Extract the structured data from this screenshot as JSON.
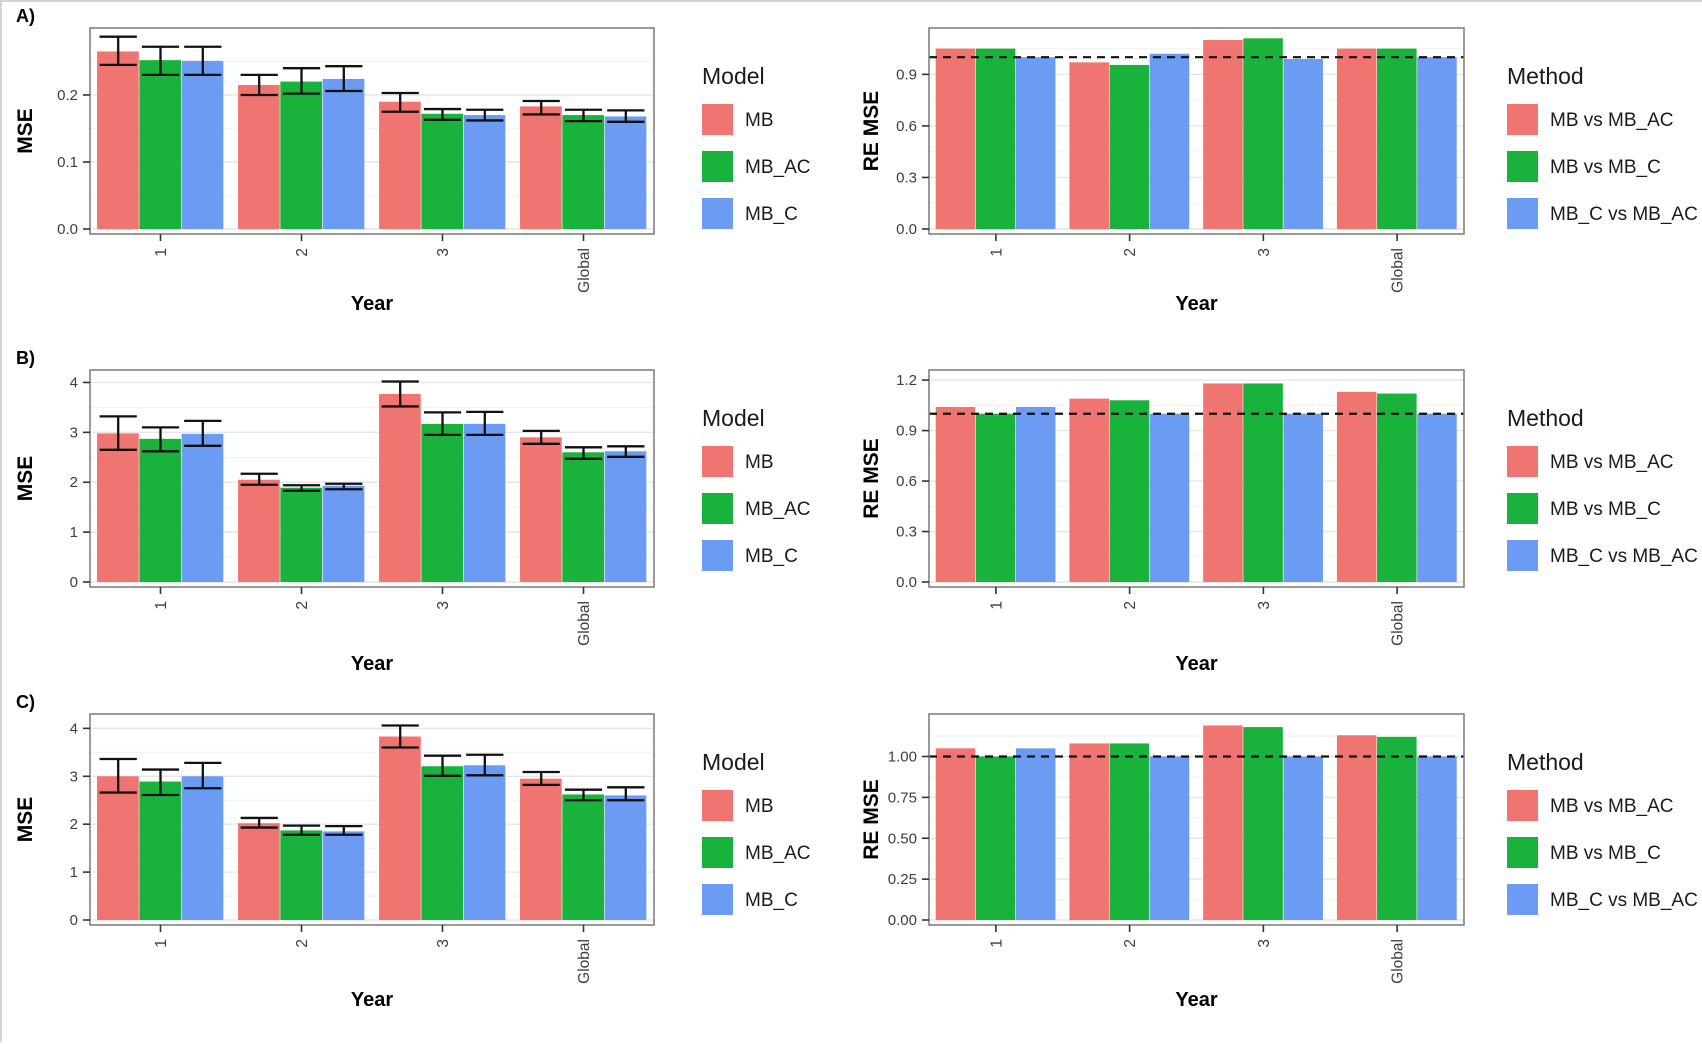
{
  "palette": {
    "red": "#F07470",
    "green": "#18B23C",
    "blue": "#6B9BF2",
    "error_bar": "#111111",
    "dashed_line": "#111111",
    "tick_text": "#3d3d3d",
    "axis_text": "#000000",
    "frame": "#808080",
    "grid_major": "#e6e6e6",
    "grid_minor": "#f2f2f2"
  },
  "chart_data": [
    {
      "type": "bar",
      "panel_label": "A)",
      "row": 0,
      "side": "left",
      "ylabel": "MSE",
      "xlabel": "Year",
      "categories": [
        "1",
        "2",
        "3",
        "Global"
      ],
      "yticks": [
        0,
        0.1,
        0.2
      ],
      "ytick_labels": [
        "0.0",
        "0.1",
        "0.2"
      ],
      "ylim": [
        0,
        0.3
      ],
      "grid": true,
      "hline": null,
      "legend": {
        "title": "Model",
        "position": "right",
        "items": [
          {
            "label": "MB",
            "color": "red"
          },
          {
            "label": "MB_AC",
            "color": "green"
          },
          {
            "label": "MB_C",
            "color": "blue"
          }
        ]
      },
      "series": [
        {
          "name": "MB",
          "color": "red",
          "values": [
            0.265,
            0.215,
            0.19,
            0.183
          ],
          "err_low": [
            0.245,
            0.2,
            0.175,
            0.171
          ],
          "err_high": [
            0.287,
            0.23,
            0.203,
            0.191
          ]
        },
        {
          "name": "MB_AC",
          "color": "green",
          "values": [
            0.252,
            0.22,
            0.172,
            0.17
          ],
          "err_low": [
            0.23,
            0.202,
            0.163,
            0.161
          ],
          "err_high": [
            0.272,
            0.24,
            0.179,
            0.178
          ]
        },
        {
          "name": "MB_C",
          "color": "blue",
          "values": [
            0.251,
            0.224,
            0.17,
            0.168
          ],
          "err_low": [
            0.23,
            0.206,
            0.162,
            0.16
          ],
          "err_high": [
            0.272,
            0.243,
            0.178,
            0.177
          ]
        }
      ]
    },
    {
      "type": "bar",
      "panel_label": null,
      "row": 0,
      "side": "right",
      "ylabel": "RE MSE",
      "xlabel": "Year",
      "categories": [
        "1",
        "2",
        "3",
        "Global"
      ],
      "yticks": [
        0,
        0.3,
        0.6,
        0.9
      ],
      "ytick_labels": [
        "0.0",
        "0.3",
        "0.6",
        "0.9"
      ],
      "ylim": [
        0,
        1.17
      ],
      "grid": true,
      "hline": 1.0,
      "legend": {
        "title": "Method",
        "position": "right",
        "items": [
          {
            "label": "MB vs MB_AC",
            "color": "red"
          },
          {
            "label": "MB vs MB_C",
            "color": "green"
          },
          {
            "label": "MB_C vs MB_AC",
            "color": "blue"
          }
        ]
      },
      "series": [
        {
          "name": "MB vs MB_AC",
          "color": "red",
          "values": [
            1.05,
            0.97,
            1.1,
            1.05
          ]
        },
        {
          "name": "MB vs MB_C",
          "color": "green",
          "values": [
            1.05,
            0.955,
            1.11,
            1.05
          ]
        },
        {
          "name": "MB_C vs MB_AC",
          "color": "blue",
          "values": [
            1.0,
            1.02,
            0.99,
            1.0
          ]
        }
      ]
    },
    {
      "type": "bar",
      "panel_label": "B)",
      "row": 1,
      "side": "left",
      "ylabel": "MSE",
      "xlabel": "Year",
      "categories": [
        "1",
        "2",
        "3",
        "Global"
      ],
      "yticks": [
        0,
        1,
        2,
        3,
        4
      ],
      "ytick_labels": [
        "0",
        "1",
        "2",
        "3",
        "4"
      ],
      "ylim": [
        0,
        4.25
      ],
      "grid": true,
      "hline": null,
      "legend": {
        "title": "Model",
        "position": "right",
        "items": [
          {
            "label": "MB",
            "color": "red"
          },
          {
            "label": "MB_AC",
            "color": "green"
          },
          {
            "label": "MB_C",
            "color": "blue"
          }
        ]
      },
      "series": [
        {
          "name": "MB",
          "color": "red",
          "values": [
            2.98,
            2.05,
            3.77,
            2.9
          ],
          "err_low": [
            2.65,
            1.95,
            3.52,
            2.77
          ],
          "err_high": [
            3.32,
            2.17,
            4.02,
            3.03
          ]
        },
        {
          "name": "MB_AC",
          "color": "green",
          "values": [
            2.87,
            1.89,
            3.17,
            2.6
          ],
          "err_low": [
            2.62,
            1.83,
            2.95,
            2.47
          ],
          "err_high": [
            3.1,
            1.94,
            3.4,
            2.7
          ]
        },
        {
          "name": "MB_C",
          "color": "blue",
          "values": [
            2.97,
            1.93,
            3.17,
            2.62
          ],
          "err_low": [
            2.73,
            1.86,
            2.95,
            2.51
          ],
          "err_high": [
            3.23,
            1.97,
            3.41,
            2.72
          ]
        }
      ]
    },
    {
      "type": "bar",
      "panel_label": null,
      "row": 1,
      "side": "right",
      "ylabel": "RE MSE",
      "xlabel": "Year",
      "categories": [
        "1",
        "2",
        "3",
        "Global"
      ],
      "yticks": [
        0,
        0.3,
        0.6,
        0.9,
        1.2
      ],
      "ytick_labels": [
        "0.0",
        "0.3",
        "0.6",
        "0.9",
        "1.2"
      ],
      "ylim": [
        0,
        1.26
      ],
      "grid": true,
      "hline": 1.0,
      "legend": {
        "title": "Method",
        "position": "right",
        "items": [
          {
            "label": "MB vs MB_AC",
            "color": "red"
          },
          {
            "label": "MB vs MB_C",
            "color": "green"
          },
          {
            "label": "MB_C vs MB_AC",
            "color": "blue"
          }
        ]
      },
      "series": [
        {
          "name": "MB vs MB_AC",
          "color": "red",
          "values": [
            1.04,
            1.09,
            1.18,
            1.13
          ]
        },
        {
          "name": "MB vs MB_C",
          "color": "green",
          "values": [
            1.0,
            1.08,
            1.18,
            1.12
          ]
        },
        {
          "name": "MB_C vs MB_AC",
          "color": "blue",
          "values": [
            1.04,
            1.0,
            1.0,
            1.0
          ]
        }
      ]
    },
    {
      "type": "bar",
      "panel_label": "C)",
      "row": 2,
      "side": "left",
      "ylabel": "MSE",
      "xlabel": "Year",
      "categories": [
        "1",
        "2",
        "3",
        "Global"
      ],
      "yticks": [
        0,
        1,
        2,
        3,
        4
      ],
      "ytick_labels": [
        "0",
        "1",
        "2",
        "3",
        "4"
      ],
      "ylim": [
        0,
        4.3
      ],
      "grid": true,
      "hline": null,
      "legend": {
        "title": "Model",
        "position": "right",
        "items": [
          {
            "label": "MB",
            "color": "red"
          },
          {
            "label": "MB_AC",
            "color": "green"
          },
          {
            "label": "MB_C",
            "color": "blue"
          }
        ]
      },
      "series": [
        {
          "name": "MB",
          "color": "red",
          "values": [
            3.0,
            2.02,
            3.83,
            2.95
          ],
          "err_low": [
            2.66,
            1.93,
            3.6,
            2.82
          ],
          "err_high": [
            3.36,
            2.13,
            4.06,
            3.09
          ]
        },
        {
          "name": "MB_AC",
          "color": "green",
          "values": [
            2.89,
            1.87,
            3.21,
            2.62
          ],
          "err_low": [
            2.61,
            1.78,
            3.01,
            2.5
          ],
          "err_high": [
            3.14,
            1.97,
            3.43,
            2.72
          ]
        },
        {
          "name": "MB_C",
          "color": "blue",
          "values": [
            3.0,
            1.85,
            3.23,
            2.6
          ],
          "err_low": [
            2.75,
            1.78,
            3.02,
            2.5
          ],
          "err_high": [
            3.28,
            1.96,
            3.45,
            2.77
          ]
        }
      ]
    },
    {
      "type": "bar",
      "panel_label": null,
      "row": 2,
      "side": "right",
      "ylabel": "RE MSE",
      "xlabel": "Year",
      "categories": [
        "1",
        "2",
        "3",
        "Global"
      ],
      "yticks": [
        0,
        0.25,
        0.5,
        0.75,
        1.0
      ],
      "ytick_labels": [
        "0.00",
        "0.25",
        "0.50",
        "0.75",
        "1.00"
      ],
      "ylim": [
        0,
        1.26
      ],
      "grid": true,
      "hline": 1.0,
      "legend": {
        "title": "Method",
        "position": "right",
        "items": [
          {
            "label": "MB vs MB_AC",
            "color": "red"
          },
          {
            "label": "MB vs MB_C",
            "color": "green"
          },
          {
            "label": "MB_C vs MB_AC",
            "color": "blue"
          }
        ]
      },
      "series": [
        {
          "name": "MB vs MB_AC",
          "color": "red",
          "values": [
            1.05,
            1.08,
            1.19,
            1.13
          ]
        },
        {
          "name": "MB vs MB_C",
          "color": "green",
          "values": [
            1.0,
            1.08,
            1.18,
            1.12
          ]
        },
        {
          "name": "MB_C vs MB_AC",
          "color": "blue",
          "values": [
            1.05,
            1.0,
            1.0,
            1.0
          ]
        }
      ]
    }
  ]
}
